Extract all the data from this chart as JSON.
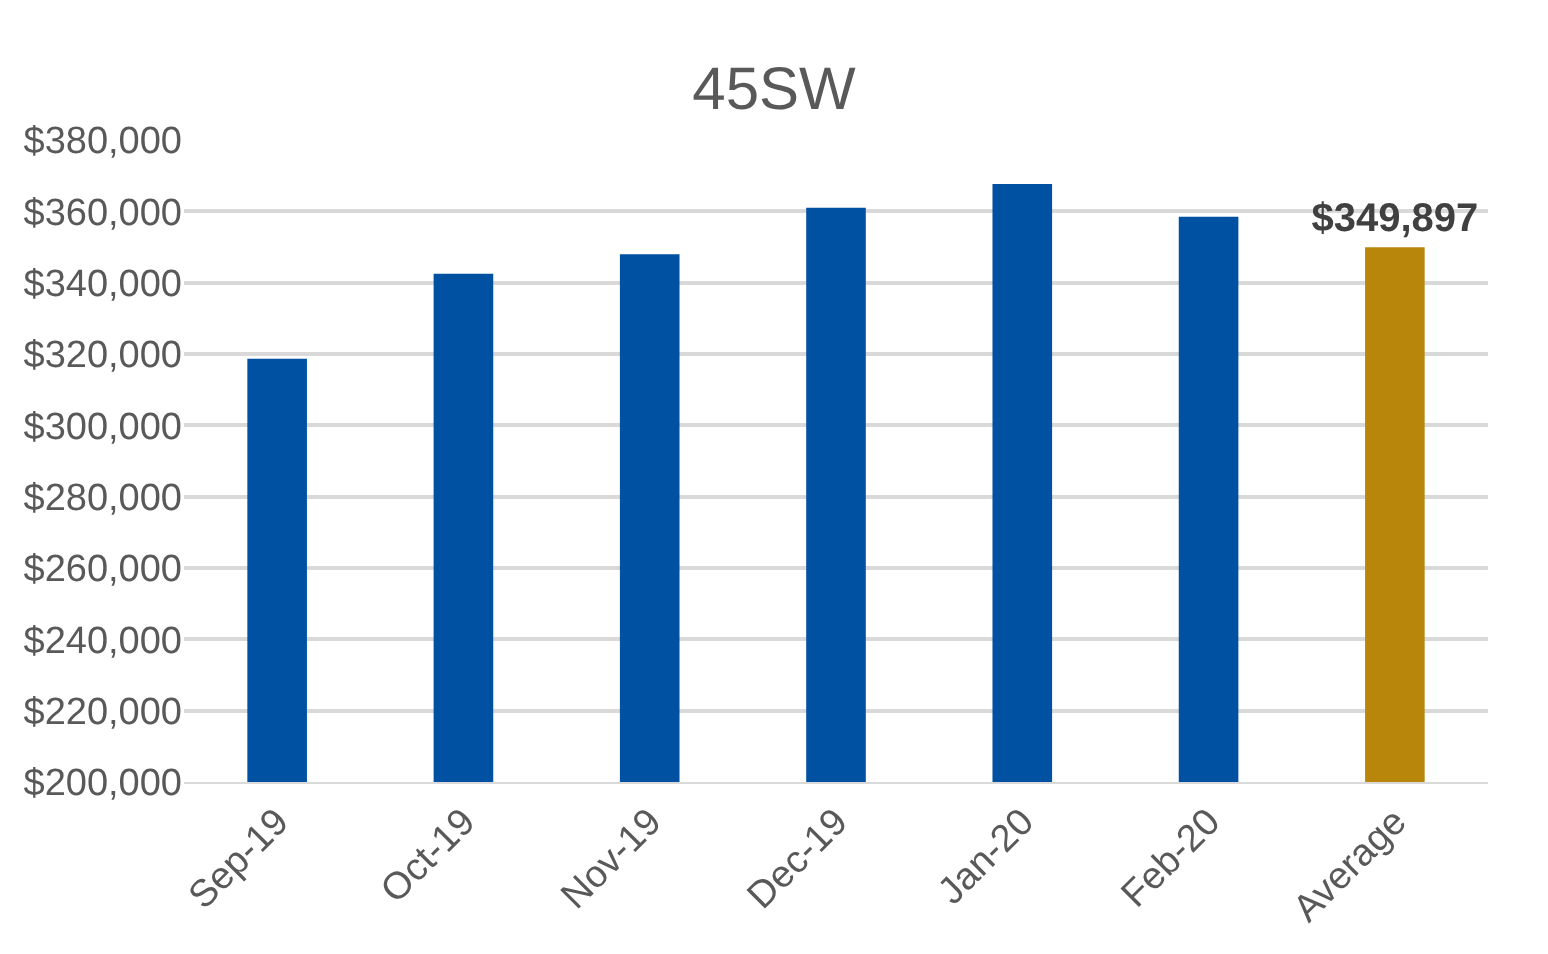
{
  "chart_data": {
    "type": "bar",
    "title": "45SW",
    "categories": [
      "Sep-19",
      "Oct-19",
      "Nov-19",
      "Dec-19",
      "Jan-20",
      "Feb-20",
      "Average"
    ],
    "values": [
      318700,
      342500,
      348000,
      361000,
      367700,
      358500,
      349897
    ],
    "colors": [
      "#0051a2",
      "#0051a2",
      "#0051a2",
      "#0051a2",
      "#0051a2",
      "#0051a2",
      "#b8860b"
    ],
    "value_labels": [
      null,
      null,
      null,
      null,
      null,
      null,
      "$349,897"
    ],
    "ylim": [
      200000,
      380000
    ],
    "yticks": [
      {
        "value": 200000,
        "label": "$200,000"
      },
      {
        "value": 220000,
        "label": "$220,000"
      },
      {
        "value": 240000,
        "label": "$240,000"
      },
      {
        "value": 260000,
        "label": "$260,000"
      },
      {
        "value": 280000,
        "label": "$280,000"
      },
      {
        "value": 300000,
        "label": "$300,000"
      },
      {
        "value": 320000,
        "label": "$320,000"
      },
      {
        "value": 340000,
        "label": "$340,000"
      },
      {
        "value": 360000,
        "label": "$360,000"
      },
      {
        "value": 380000,
        "label": "$380,000"
      }
    ],
    "grid": "y"
  }
}
